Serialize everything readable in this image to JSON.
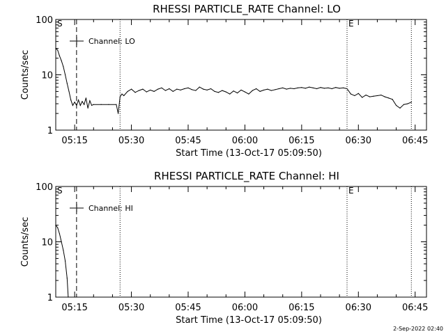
{
  "footer": "2-Sep-2022 02:40",
  "chart_data": [
    {
      "type": "line",
      "title": "RHESSI PARTICLE_RATE Channel: LO",
      "xlabel": "Start Time (13-Oct-17 05:09:50)",
      "ylabel": "Counts/sec",
      "yscale": "log",
      "ylim": [
        1,
        100
      ],
      "yticks": [
        "1",
        "10",
        "100"
      ],
      "xlim": [
        "05:10",
        "06:48"
      ],
      "xticks": [
        "05:15",
        "05:30",
        "05:45",
        "06:00",
        "06:15",
        "06:30",
        "06:45"
      ],
      "legend": "Channel: LO",
      "marker_labels": {
        "start": "S",
        "end": "E"
      },
      "markers": [
        {
          "time": "05:10",
          "label": "S",
          "style": "none"
        },
        {
          "time": "05:15.5",
          "style": "dashed"
        },
        {
          "time": "05:27",
          "style": "dotted"
        },
        {
          "time": "06:27",
          "label": "E",
          "style": "dotted"
        },
        {
          "time": "06:44",
          "style": "dotted"
        }
      ],
      "series": [
        {
          "x": [
            "05:10",
            "05:10.5",
            "05:11",
            "05:11.5",
            "05:12",
            "05:12.5",
            "05:13",
            "05:13.5",
            "05:14",
            "05:14.5",
            "05:15",
            "05:15.5",
            "05:16",
            "05:16.5",
            "05:17",
            "05:17.5",
            "05:18",
            "05:18.5",
            "05:19",
            "05:19.5",
            "05:20",
            "05:22",
            "05:24",
            "05:26",
            "05:26.5",
            "05:27",
            "05:27.5",
            "05:28",
            "05:29",
            "05:30",
            "05:31",
            "05:32",
            "05:33",
            "05:34",
            "05:35",
            "05:36",
            "05:37",
            "05:38",
            "05:39",
            "05:40",
            "05:41",
            "05:42",
            "05:43",
            "05:44",
            "05:45",
            "05:46",
            "05:47",
            "05:48",
            "05:49",
            "05:50",
            "05:51",
            "05:52",
            "05:53",
            "05:54",
            "05:55",
            "05:56",
            "05:57",
            "05:58",
            "05:59",
            "06:00",
            "06:01",
            "06:02",
            "06:03",
            "06:04",
            "06:05",
            "06:06",
            "06:07",
            "06:08",
            "06:09",
            "06:10",
            "06:11",
            "06:12",
            "06:13",
            "06:14",
            "06:15",
            "06:16",
            "06:17",
            "06:18",
            "06:19",
            "06:20",
            "06:21",
            "06:22",
            "06:23",
            "06:24",
            "06:25",
            "06:26",
            "06:27",
            "06:28",
            "06:29",
            "06:30",
            "06:31",
            "06:32",
            "06:33",
            "06:34",
            "06:35",
            "06:36",
            "06:37",
            "06:38",
            "06:39",
            "06:40",
            "06:41",
            "06:42",
            "06:43",
            "06:44"
          ],
          "y": [
            30,
            28,
            22,
            18,
            14,
            10,
            7,
            5,
            3.5,
            2.8,
            3.2,
            2.8,
            3.5,
            2.8,
            3.3,
            2.9,
            3.8,
            2.5,
            3.4,
            2.8,
            2.9,
            2.9,
            2.9,
            2.9,
            2.0,
            4.0,
            4.5,
            4.2,
            5.0,
            5.5,
            4.8,
            5.2,
            5.5,
            4.9,
            5.3,
            5.0,
            5.5,
            5.8,
            5.2,
            5.6,
            5.0,
            5.5,
            5.3,
            5.6,
            5.8,
            5.4,
            5.2,
            6.0,
            5.5,
            5.3,
            5.6,
            5.0,
            4.8,
            5.2,
            4.9,
            4.5,
            5.1,
            4.7,
            5.3,
            4.9,
            4.5,
            5.2,
            5.6,
            5.0,
            5.3,
            5.5,
            5.2,
            5.4,
            5.6,
            5.8,
            5.5,
            5.7,
            5.6,
            5.8,
            5.9,
            5.7,
            6.0,
            5.8,
            5.6,
            5.9,
            5.7,
            5.8,
            5.6,
            5.9,
            5.7,
            5.8,
            5.6,
            4.5,
            4.2,
            4.6,
            3.9,
            4.3,
            4.0,
            4.1,
            4.2,
            4.3,
            4.0,
            3.8,
            3.6,
            2.8,
            2.5,
            2.9,
            3.0,
            3.2
          ]
        }
      ]
    },
    {
      "type": "line",
      "title": "RHESSI PARTICLE_RATE Channel: HI",
      "xlabel": "Start Time (13-Oct-17 05:09:50)",
      "ylabel": "Counts/sec",
      "yscale": "log",
      "ylim": [
        1,
        100
      ],
      "yticks": [
        "1",
        "10",
        "100"
      ],
      "xlim": [
        "05:10",
        "06:48"
      ],
      "xticks": [
        "05:15",
        "05:30",
        "05:45",
        "06:00",
        "06:15",
        "06:30",
        "06:45"
      ],
      "legend": "Channel: HI",
      "marker_labels": {
        "start": "S",
        "end": "E"
      },
      "markers": [
        {
          "time": "05:10",
          "label": "S",
          "style": "none"
        },
        {
          "time": "05:15.5",
          "style": "dashed"
        },
        {
          "time": "05:27",
          "style": "dotted"
        },
        {
          "time": "06:27",
          "label": "E",
          "style": "dotted"
        },
        {
          "time": "06:44",
          "style": "dotted"
        }
      ],
      "series": [
        {
          "x": [
            "05:10",
            "05:10.5",
            "05:11",
            "05:11.5",
            "05:12",
            "05:12.5",
            "05:13",
            "05:13.3"
          ],
          "y": [
            20,
            18,
            14,
            10,
            7,
            4.5,
            2.2,
            1.0
          ]
        }
      ]
    }
  ]
}
